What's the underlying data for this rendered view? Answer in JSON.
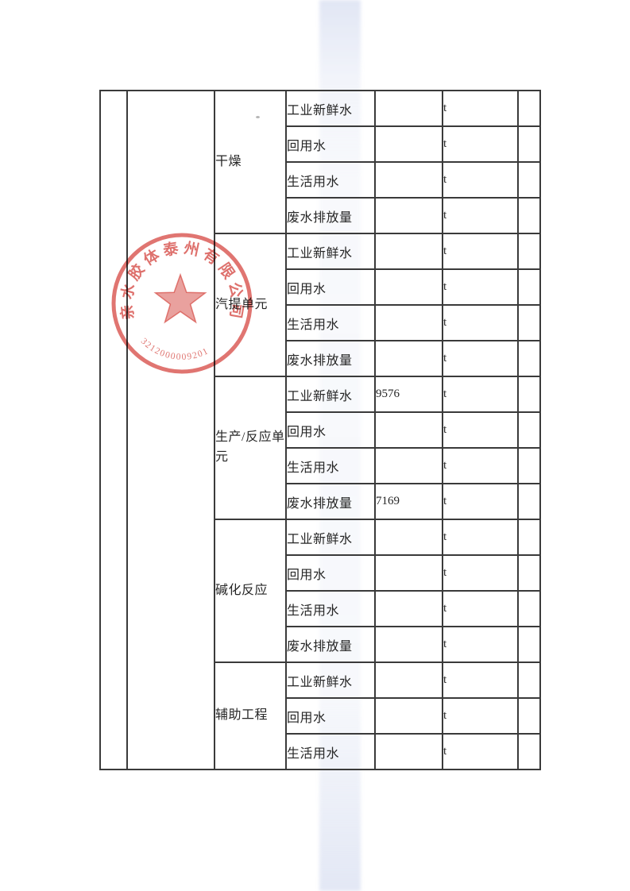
{
  "table": {
    "sections": [
      {
        "unit": "干燥",
        "rows": [
          {
            "category": "工业新鲜水",
            "value": "",
            "unit": "t"
          },
          {
            "category": "回用水",
            "value": "",
            "unit": "t"
          },
          {
            "category": "生活用水",
            "value": "",
            "unit": "t"
          },
          {
            "category": "废水排放量",
            "value": "",
            "unit": "t"
          }
        ]
      },
      {
        "unit": "汽提单元",
        "rows": [
          {
            "category": "工业新鲜水",
            "value": "",
            "unit": "t"
          },
          {
            "category": "回用水",
            "value": "",
            "unit": "t"
          },
          {
            "category": "生活用水",
            "value": "",
            "unit": "t"
          },
          {
            "category": "废水排放量",
            "value": "",
            "unit": "t"
          }
        ]
      },
      {
        "unit": "生产/反应单元",
        "rows": [
          {
            "category": "工业新鲜水",
            "value": "9576",
            "unit": "t"
          },
          {
            "category": "回用水",
            "value": "",
            "unit": "t"
          },
          {
            "category": "生活用水",
            "value": "",
            "unit": "t"
          },
          {
            "category": "废水排放量",
            "value": "7169",
            "unit": "t"
          }
        ]
      },
      {
        "unit": "碱化反应",
        "rows": [
          {
            "category": "工业新鲜水",
            "value": "",
            "unit": "t"
          },
          {
            "category": "回用水",
            "value": "",
            "unit": "t"
          },
          {
            "category": "生活用水",
            "value": "",
            "unit": "t"
          },
          {
            "category": "废水排放量",
            "value": "",
            "unit": "t"
          }
        ]
      },
      {
        "unit": "辅助工程",
        "rows": [
          {
            "category": "工业新鲜水",
            "value": "",
            "unit": "t"
          },
          {
            "category": "回用水",
            "value": "",
            "unit": "t"
          },
          {
            "category": "生活用水",
            "value": "",
            "unit": "t"
          }
        ]
      }
    ]
  },
  "stamp": {
    "ring_text": "亲水胶体泰州有限公司",
    "number": "3212000009201",
    "color": "#d4453f"
  }
}
